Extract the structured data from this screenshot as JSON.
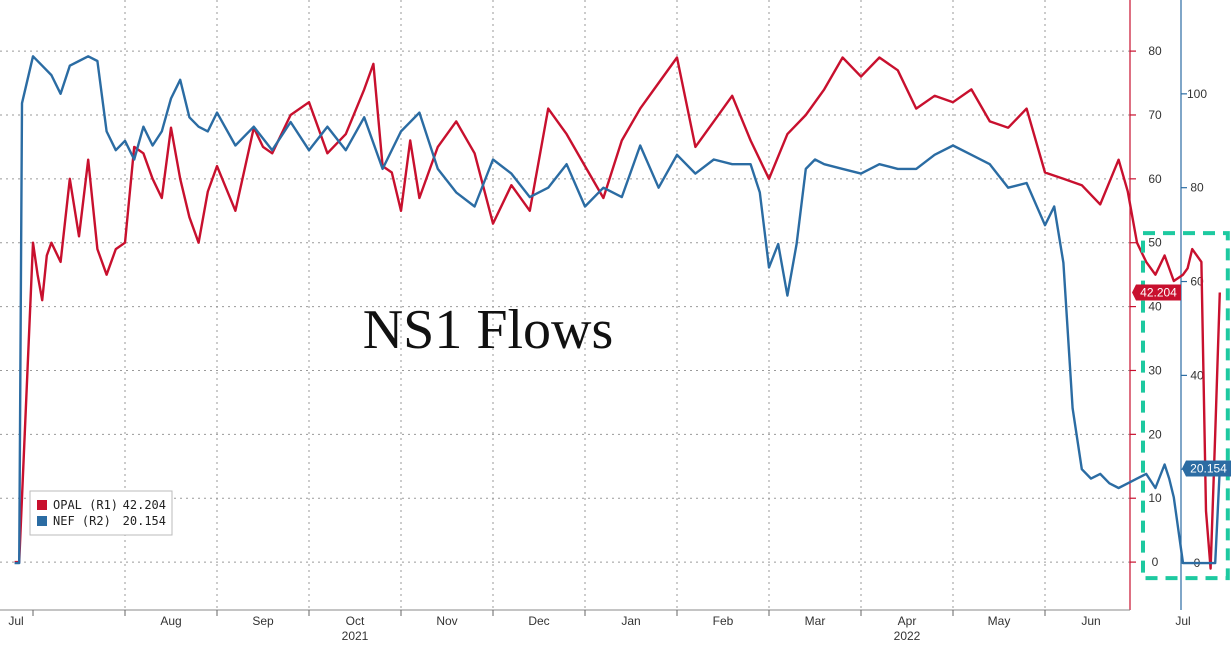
{
  "chart_data": {
    "type": "line",
    "title": "NS1 Flows",
    "x_axis": {
      "months": [
        "Jul",
        "Aug",
        "Sep",
        "Oct",
        "Nov",
        "Dec",
        "Jan",
        "Feb",
        "Mar",
        "Apr",
        "May",
        "Jun",
        "Jul"
      ],
      "years": [
        {
          "label": "2021",
          "under_month": "Oct"
        },
        {
          "label": "2022",
          "under_month": "Apr"
        }
      ]
    },
    "y_left": {
      "axis": "R1",
      "ticks": [
        0,
        10,
        20,
        30,
        40,
        50,
        60,
        70,
        80
      ],
      "range": [
        -7.5,
        88
      ],
      "color": "#c8102e"
    },
    "y_right": {
      "axis": "R2",
      "ticks": [
        0,
        20,
        40,
        60,
        80,
        100
      ],
      "range": [
        -10,
        120
      ],
      "color": "#2b6ca3"
    },
    "grid": true,
    "legend": {
      "position": "bottom-left",
      "entries": [
        {
          "name": "OPAL (R1)",
          "value": "42.204",
          "color": "#c8102e"
        },
        {
          "name": "NEF (R2)",
          "value": "20.154",
          "color": "#2b6ca3"
        }
      ]
    },
    "last_value_badges": [
      {
        "series": "OPAL",
        "label": "42.204",
        "value": 42.204,
        "axis": "left",
        "color": "#c8102e"
      },
      {
        "series": "NEF",
        "label": "20.154",
        "value": 20.154,
        "axis": "right",
        "color": "#2b6ca3"
      }
    ],
    "highlight": {
      "note": "dashed box around latest period",
      "x_range_months": [
        12.0,
        12.9
      ],
      "y_range_left": [
        -2.5,
        51.5
      ],
      "color": "#1dc9a0"
    },
    "series": [
      {
        "name": "OPAL",
        "axis": "R1",
        "color": "#c8102e",
        "x_months": [
          -0.2,
          -0.15,
          0.0,
          0.05,
          0.1,
          0.15,
          0.2,
          0.3,
          0.4,
          0.5,
          0.6,
          0.7,
          0.8,
          0.9,
          1.0,
          1.1,
          1.2,
          1.3,
          1.4,
          1.5,
          1.6,
          1.7,
          1.8,
          1.9,
          2.0,
          2.2,
          2.4,
          2.5,
          2.6,
          2.8,
          3.0,
          3.1,
          3.2,
          3.4,
          3.6,
          3.7,
          3.8,
          3.9,
          4.0,
          4.1,
          4.2,
          4.4,
          4.6,
          4.8,
          5.0,
          5.2,
          5.4,
          5.6,
          5.8,
          6.0,
          6.2,
          6.4,
          6.6,
          6.8,
          7.0,
          7.2,
          7.4,
          7.6,
          7.8,
          8.0,
          8.2,
          8.4,
          8.6,
          8.8,
          9.0,
          9.2,
          9.4,
          9.6,
          9.8,
          10.0,
          10.2,
          10.4,
          10.6,
          10.8,
          11.0,
          11.2,
          11.4,
          11.6,
          11.8,
          11.9,
          12.0,
          12.1,
          12.2,
          12.3,
          12.4,
          12.5,
          12.55,
          12.6,
          12.7,
          12.75,
          12.8,
          12.85,
          12.9
        ],
        "values": [
          0,
          0,
          50,
          45,
          41,
          48,
          50,
          47,
          60,
          51,
          63,
          49,
          45,
          49,
          50,
          65,
          64,
          60,
          57,
          68,
          60,
          54,
          50,
          58,
          62,
          55,
          68,
          65,
          64,
          70,
          72,
          68,
          64,
          67,
          74,
          78,
          62,
          61,
          55,
          66,
          57,
          65,
          69,
          64,
          53,
          59,
          55,
          71,
          67,
          62,
          57,
          66,
          71,
          75,
          79,
          65,
          69,
          73,
          66,
          60,
          67,
          70,
          74,
          79,
          76,
          79,
          77,
          71,
          73,
          72,
          74,
          69,
          68,
          71,
          61,
          60,
          59,
          56,
          63,
          58,
          50,
          47,
          45,
          48,
          44,
          45,
          46,
          49,
          47,
          8,
          -1,
          20,
          42.204
        ]
      },
      {
        "name": "NEF",
        "axis": "R2",
        "color": "#2b6ca3",
        "x_months": [
          -0.2,
          -0.15,
          -0.12,
          0.0,
          0.1,
          0.2,
          0.3,
          0.4,
          0.5,
          0.6,
          0.7,
          0.8,
          0.9,
          1.0,
          1.1,
          1.2,
          1.3,
          1.4,
          1.5,
          1.6,
          1.7,
          1.8,
          1.9,
          2.0,
          2.2,
          2.4,
          2.6,
          2.8,
          3.0,
          3.2,
          3.4,
          3.6,
          3.8,
          4.0,
          4.2,
          4.4,
          4.6,
          4.8,
          5.0,
          5.2,
          5.4,
          5.6,
          5.8,
          6.0,
          6.2,
          6.4,
          6.6,
          6.8,
          7.0,
          7.2,
          7.4,
          7.6,
          7.8,
          7.9,
          8.0,
          8.1,
          8.2,
          8.3,
          8.4,
          8.5,
          8.6,
          8.8,
          9.0,
          9.2,
          9.4,
          9.6,
          9.8,
          10.0,
          10.2,
          10.4,
          10.6,
          10.8,
          11.0,
          11.1,
          11.2,
          11.3,
          11.4,
          11.5,
          11.6,
          11.7,
          11.8,
          11.9,
          12.0,
          12.1,
          12.2,
          12.3,
          12.35,
          12.4,
          12.5,
          12.55,
          12.6,
          12.7,
          12.8,
          12.85,
          12.9
        ],
        "values": [
          0,
          0,
          98,
          108,
          106,
          104,
          100,
          106,
          107,
          108,
          107,
          92,
          88,
          90,
          86,
          93,
          89,
          92,
          99,
          103,
          95,
          93,
          92,
          96,
          89,
          93,
          88,
          94,
          88,
          93,
          88,
          95,
          84,
          92,
          96,
          84,
          79,
          76,
          86,
          83,
          78,
          80,
          85,
          76,
          80,
          78,
          89,
          80,
          87,
          83,
          86,
          85,
          85,
          79,
          63,
          68,
          57,
          68,
          84,
          86,
          85,
          84,
          83,
          85,
          84,
          84,
          87,
          89,
          87,
          85,
          80,
          81,
          72,
          76,
          64,
          33,
          20,
          18,
          19,
          17,
          16,
          17,
          18,
          19,
          16,
          21,
          18,
          14,
          0,
          0,
          0,
          0,
          0,
          0,
          20.154
        ]
      }
    ]
  }
}
